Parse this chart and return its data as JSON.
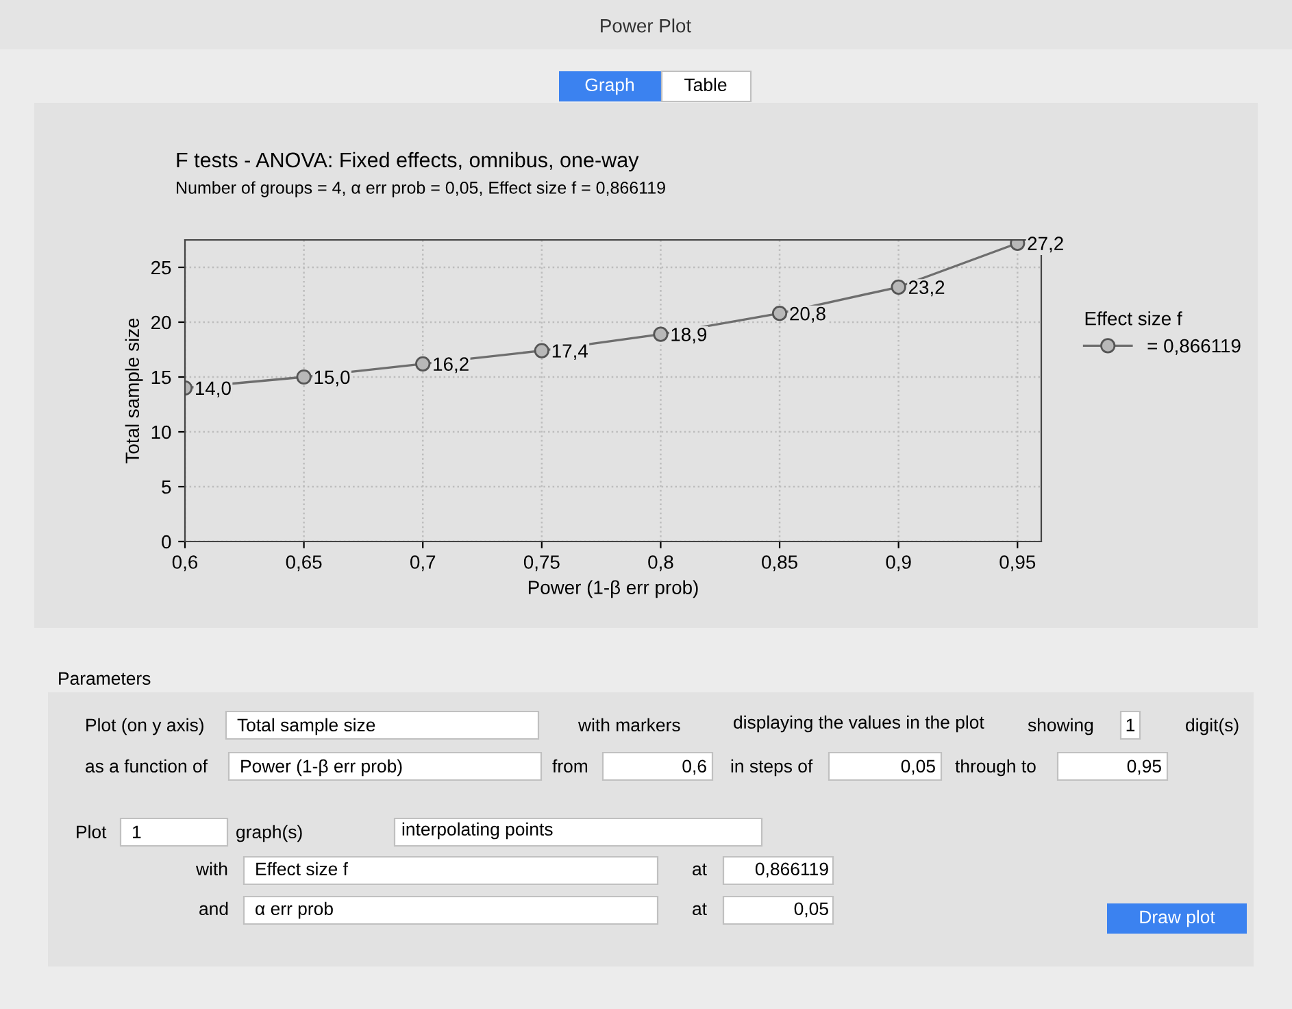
{
  "chart_data": {
    "type": "line",
    "title": "F tests - ANOVA: Fixed effects, omnibus, one-way",
    "subtitle": "Number of groups = 4, α err prob = 0,05, Effect size f = 0,866119",
    "xlabel": "Power (1-β err prob)",
    "ylabel": "Total sample size",
    "legend_title": "Effect size f",
    "x": [
      0.6,
      0.65,
      0.7,
      0.75,
      0.8,
      0.85,
      0.9,
      0.95
    ],
    "series": [
      {
        "name": "= 0,866119",
        "color": "#6e6e6e",
        "values": [
          14.0,
          15.0,
          16.2,
          17.4,
          18.9,
          20.8,
          23.2,
          27.2
        ],
        "value_labels": [
          "14,0",
          "15,0",
          "16,2",
          "17,4",
          "18,9",
          "20,8",
          "23,2",
          "27,2"
        ]
      }
    ],
    "xlim": [
      0.6,
      0.96
    ],
    "ylim": [
      0,
      27.5
    ],
    "xticks": [
      {
        "value": 0.6,
        "label": "0,6"
      },
      {
        "value": 0.65,
        "label": "0,65"
      },
      {
        "value": 0.7,
        "label": "0,7"
      },
      {
        "value": 0.75,
        "label": "0,75"
      },
      {
        "value": 0.8,
        "label": "0,8"
      },
      {
        "value": 0.85,
        "label": "0,85"
      },
      {
        "value": 0.9,
        "label": "0,9"
      },
      {
        "value": 0.95,
        "label": "0,95"
      }
    ],
    "yticks": [
      0,
      5,
      10,
      15,
      20,
      25
    ],
    "grid": true,
    "legend": "right",
    "marker": "circle",
    "line_style": "solid",
    "annotations": [
      "Power Plot",
      "Graph",
      "Table",
      "Parameters",
      "Plot (on y axis)",
      "Total sample size",
      "with markers",
      "displaying the values in the plot",
      "showing",
      "1",
      "digit(s)",
      "as a function of",
      "Power (1-β err prob)",
      "from",
      "0,6",
      "in steps of",
      "0,05",
      "through to",
      "0,95",
      "Plot",
      "1",
      "graph(s)",
      "interpolating points",
      "with",
      "Effect size f",
      "at",
      "0,866119",
      "and",
      "α err prob",
      "at",
      "0,05",
      "Draw plot"
    ]
  }
}
